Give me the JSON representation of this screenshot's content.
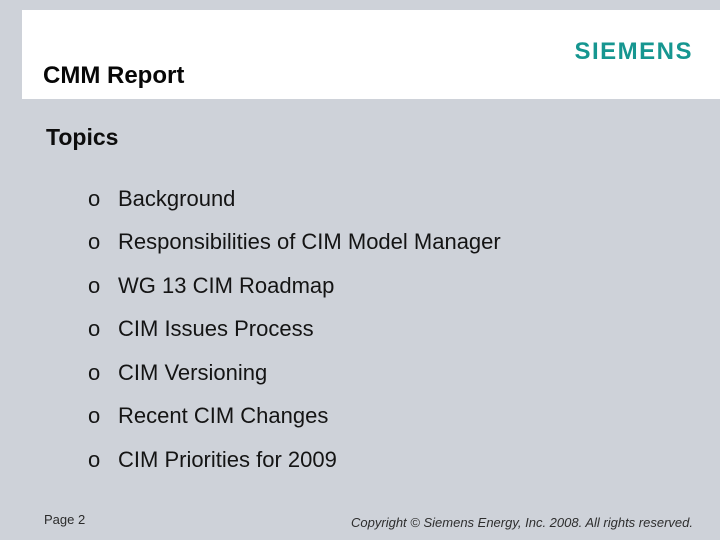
{
  "slide": {
    "brand": "SIEMENS",
    "title": "CMM Report",
    "heading": "Topics",
    "bullet_char": "o",
    "topics": [
      "Background",
      "Responsibilities of CIM Model Manager",
      "WG 13 CIM Roadmap",
      "CIM Issues Process",
      "CIM Versioning",
      "Recent CIM Changes",
      "CIM Priorities for 2009"
    ],
    "footer": {
      "page_label": "Page 2",
      "copyright": "Copyright © Siemens Energy, Inc. 2008. All rights reserved."
    },
    "colors": {
      "background": "#ced2d9",
      "header_panel": "#ffffff",
      "brand_teal": "#169690",
      "text": "#0d0d0d"
    }
  }
}
